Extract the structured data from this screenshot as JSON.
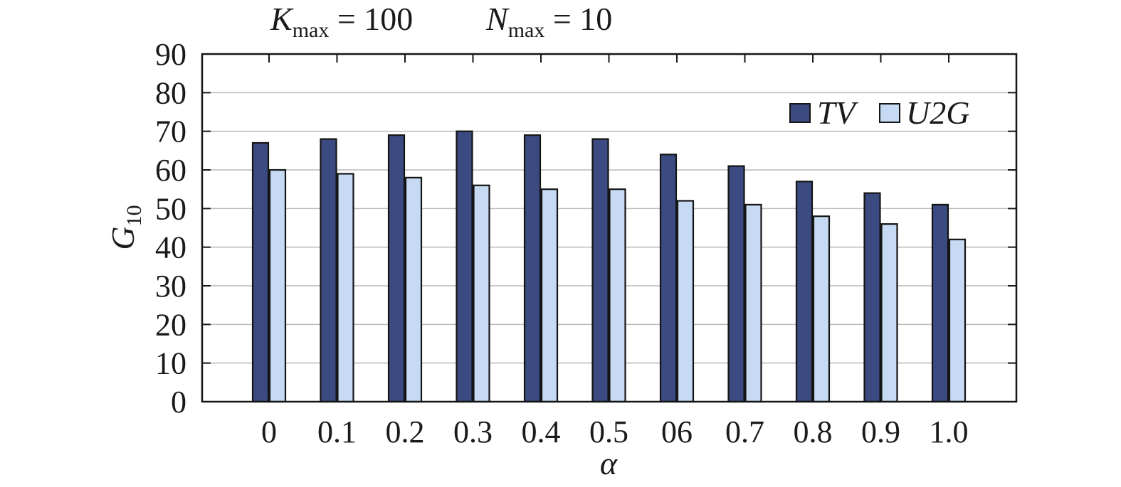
{
  "chart_data": {
    "type": "bar",
    "params": [
      {
        "symbol": "K",
        "subscript": "max",
        "relation": " = 100"
      },
      {
        "symbol": "N",
        "subscript": "max",
        "relation": " = 10"
      }
    ],
    "xlabel": "α",
    "ylabel": {
      "symbol": "G",
      "subscript": "10"
    },
    "categories": [
      "0",
      "0.1",
      "0.2",
      "0.3",
      "0.4",
      "0.5",
      "06",
      "0.7",
      "0.8",
      "0.9",
      "1.0"
    ],
    "series": [
      {
        "name": "TV",
        "color": "#3b4a80",
        "values": [
          67,
          68,
          69,
          70,
          69,
          68,
          64,
          61,
          57,
          54,
          51
        ]
      },
      {
        "name": "U2G",
        "color": "#c6dbf3",
        "values": [
          60,
          59,
          58,
          56,
          55,
          55,
          52,
          51,
          48,
          46,
          42
        ]
      }
    ],
    "ylim": [
      0,
      90
    ],
    "yticks": [
      0,
      10,
      20,
      30,
      40,
      50,
      60,
      70,
      80,
      90
    ],
    "grid": true,
    "legend_position": "top-right"
  }
}
